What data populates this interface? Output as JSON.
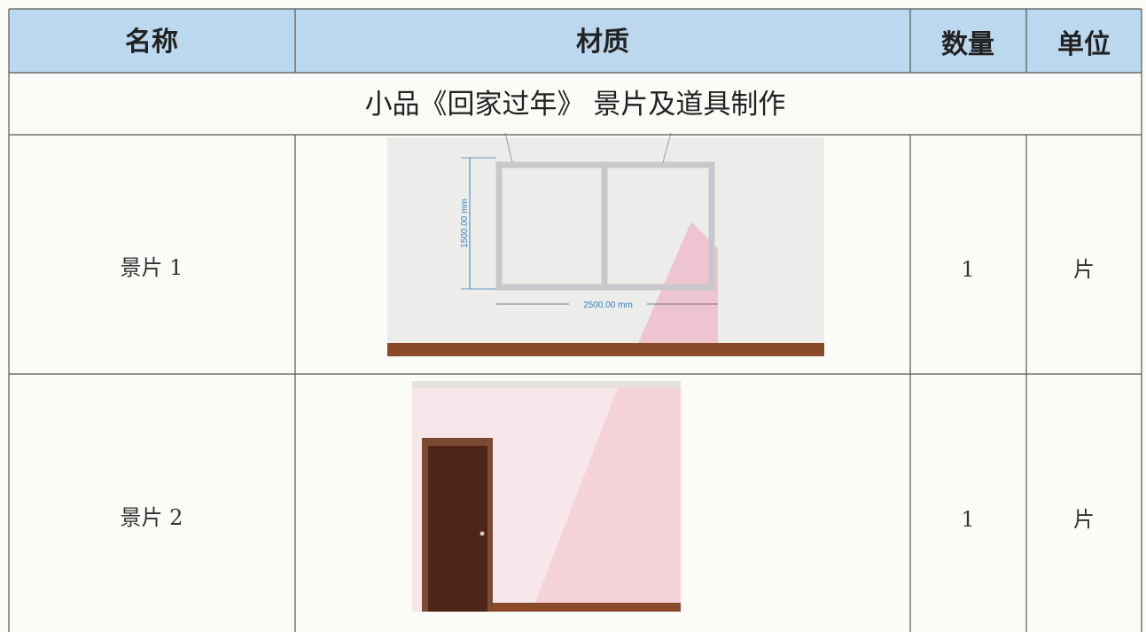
{
  "header": {
    "columns": [
      "名称",
      "材质",
      "数量",
      "单位"
    ]
  },
  "section_title": "小品《回家过年》 景片及道具制作",
  "rows": [
    {
      "name": "景片 1",
      "dimensions": {
        "height": "1500.00 mm",
        "width": "2500.00 mm"
      },
      "quantity": "1",
      "unit": "片"
    },
    {
      "name": "景片 2",
      "quantity": "1",
      "unit": "片"
    }
  ]
}
